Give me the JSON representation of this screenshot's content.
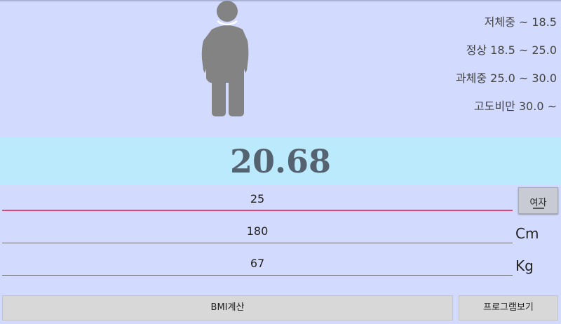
{
  "legend": {
    "items": [
      "저체중 ~ 18.5",
      "정상 18.5 ~ 25.0",
      "과체중 25.0 ~ 30.0",
      "고도비만 30.0 ~"
    ]
  },
  "result": {
    "bmi": "20.68"
  },
  "inputs": {
    "age": "25",
    "height": "180",
    "weight": "67"
  },
  "units": {
    "height": "Cm",
    "weight": "Kg"
  },
  "buttons": {
    "gender": "여자",
    "calculate": "BMI계산",
    "view_program": "프로그램보기"
  },
  "colors": {
    "background": "#d2dafd",
    "result_band": "#bbeafd",
    "active_underline": "#e3457b",
    "figure": "#838383"
  },
  "icons": {
    "figure": "person-silhouette-icon"
  }
}
